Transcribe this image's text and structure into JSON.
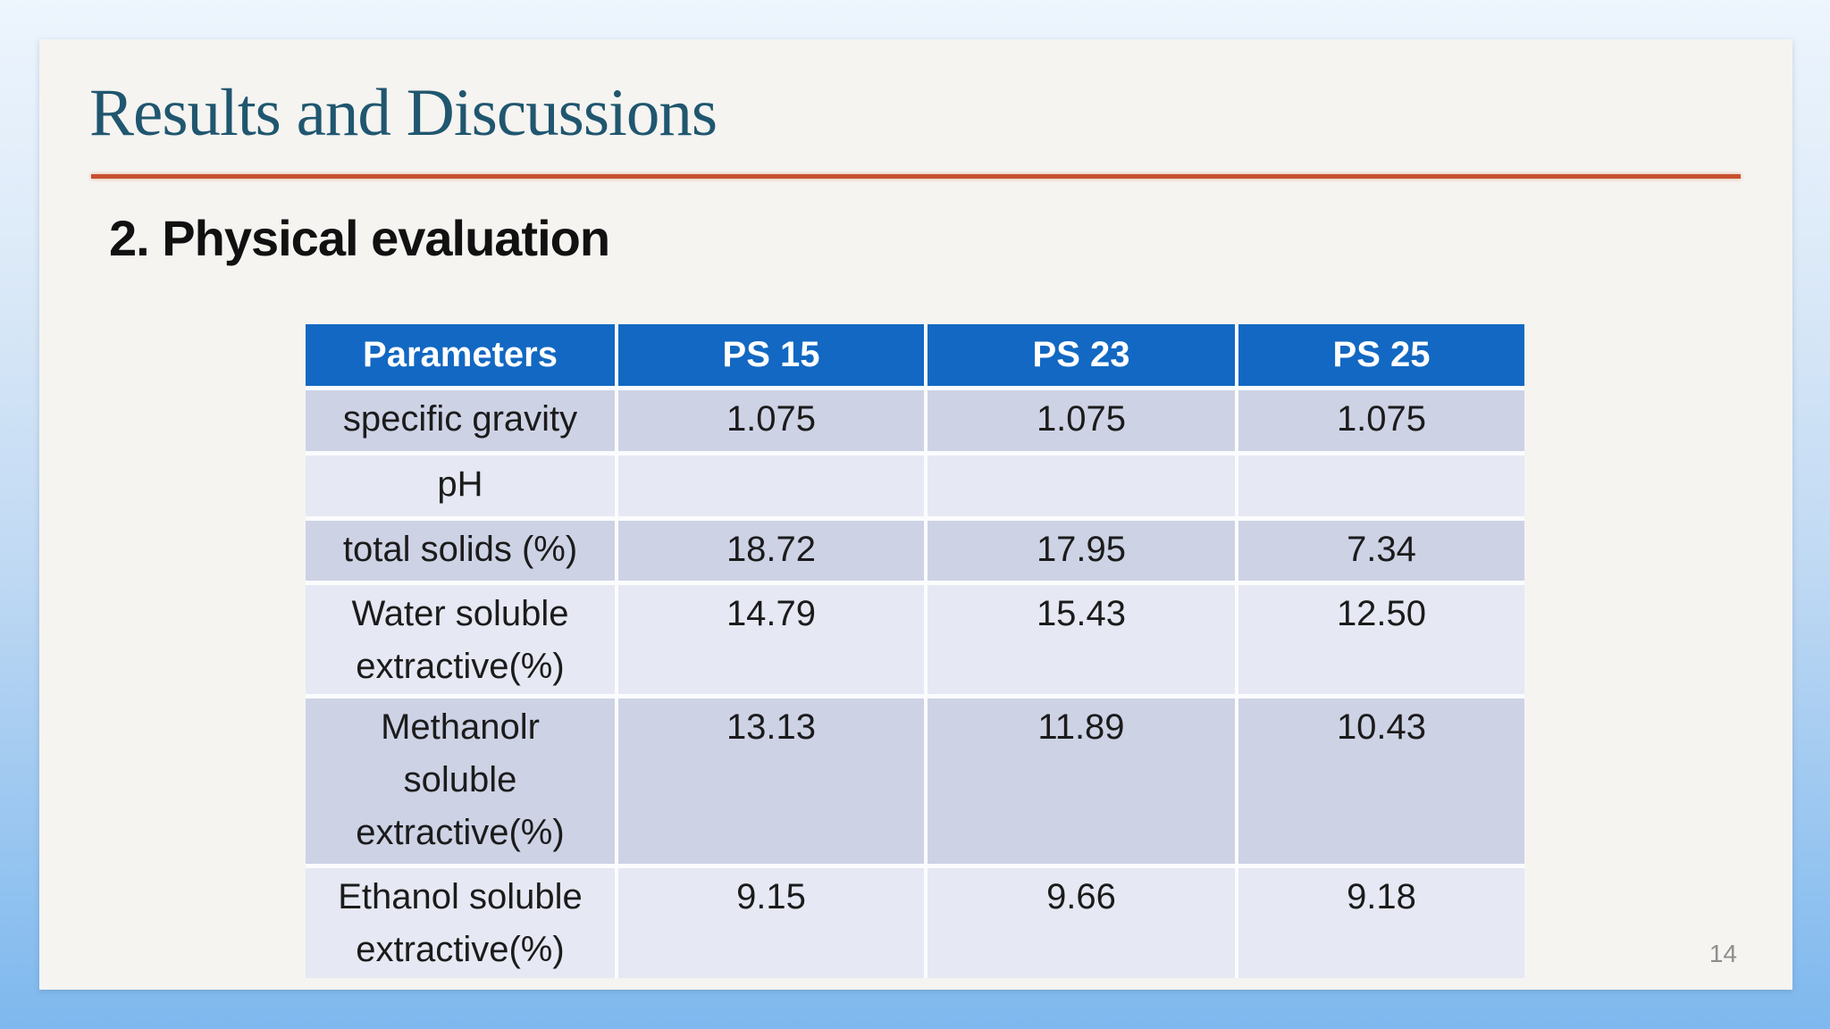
{
  "slide": {
    "title": "Results and Discussions",
    "section_heading": "2. Physical evaluation",
    "page_number": "14"
  },
  "table": {
    "headers": [
      "Parameters",
      "PS 15",
      "PS 23",
      "PS 25"
    ],
    "rows": [
      {
        "parameter": "specific gravity",
        "values": [
          "1.075",
          "1.075",
          "1.075"
        ]
      },
      {
        "parameter": "pH",
        "values": [
          "",
          "",
          ""
        ]
      },
      {
        "parameter": "total solids (%)",
        "values": [
          "18.72",
          "17.95",
          "7.34"
        ]
      },
      {
        "parameter": "Water soluble extractive(%)",
        "values": [
          "14.79",
          "15.43",
          "12.50"
        ]
      },
      {
        "parameter": "Methanolr soluble extractive(%)",
        "values": [
          "13.13",
          "11.89",
          "10.43"
        ]
      },
      {
        "parameter": "Ethanol soluble extractive(%)",
        "values": [
          "9.15",
          "9.66",
          "9.18"
        ]
      }
    ]
  },
  "colors": {
    "header_blue": "#1268C2",
    "row_dark": "#CDD2E5",
    "row_light": "#E6E8F3",
    "title_teal": "#20566F",
    "divider_orange": "#C7502D",
    "slide_background": "#F5F4F1",
    "page_gradient_top": "#EDF5FD",
    "page_gradient_bottom": "#7EB8EE"
  }
}
